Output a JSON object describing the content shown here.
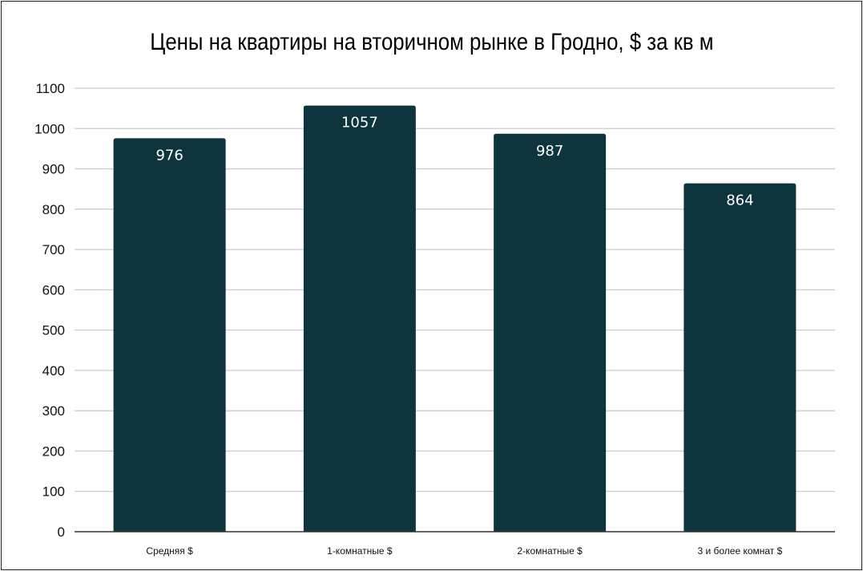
{
  "chart_data": {
    "type": "bar",
    "title": "Цены на квартиры на вторичном рынке в Гродно, $ за кв м",
    "xlabel": "",
    "ylabel": "",
    "categories": [
      "Средняя $",
      "1-комнатные $",
      "2-комнатные $",
      "3 и более комнат $"
    ],
    "values": [
      976,
      1057,
      987,
      864
    ],
    "data_labels": [
      "976",
      "1057",
      "987",
      "864"
    ],
    "ylim": [
      0,
      1100
    ],
    "yticks": [
      "0",
      "100",
      "200",
      "300",
      "400",
      "500",
      "600",
      "700",
      "800",
      "900",
      "1000",
      "1100"
    ],
    "grid": true,
    "legend": "none",
    "colors": {
      "bar": "#0e343d",
      "label": "#ffffff",
      "grid": "#cccccc",
      "axis": "#333333"
    }
  }
}
